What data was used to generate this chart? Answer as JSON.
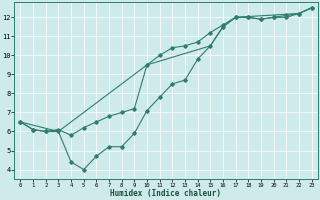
{
  "xlabel": "Humidex (Indice chaleur)",
  "background_color": "#ceeaea",
  "grid_color": "#ffffff",
  "line_color": "#2e7d6e",
  "xlim": [
    -0.5,
    23.5
  ],
  "ylim": [
    3.5,
    12.8
  ],
  "xticks": [
    0,
    1,
    2,
    3,
    4,
    5,
    6,
    7,
    8,
    9,
    10,
    11,
    12,
    13,
    14,
    15,
    16,
    17,
    18,
    19,
    20,
    21,
    22,
    23
  ],
  "yticks": [
    4,
    5,
    6,
    7,
    8,
    9,
    10,
    11,
    12
  ],
  "series1_x": [
    0,
    1,
    2,
    3,
    4,
    5,
    6,
    7,
    8,
    9,
    10,
    11,
    12,
    13,
    14,
    15,
    16,
    17,
    18,
    19,
    20,
    21,
    22,
    23
  ],
  "series1_y": [
    6.5,
    6.1,
    6.0,
    6.0,
    4.4,
    4.0,
    4.7,
    5.2,
    5.2,
    5.9,
    7.1,
    7.8,
    8.5,
    8.7,
    9.8,
    10.5,
    11.5,
    12.0,
    12.0,
    11.9,
    12.0,
    12.1,
    12.2,
    12.5
  ],
  "series2_x": [
    0,
    1,
    2,
    3,
    4,
    5,
    6,
    7,
    8,
    9,
    10,
    11,
    12,
    13,
    14,
    15,
    16,
    17,
    18,
    19,
    20,
    21,
    22,
    23
  ],
  "series2_y": [
    6.5,
    6.1,
    6.0,
    6.1,
    5.8,
    6.2,
    6.5,
    6.8,
    7.0,
    7.2,
    9.5,
    10.0,
    10.4,
    10.5,
    10.7,
    11.2,
    11.6,
    12.0,
    12.0,
    11.9,
    12.0,
    12.0,
    12.2,
    12.5
  ],
  "series3_x": [
    0,
    3,
    10,
    15,
    16,
    17,
    22,
    23
  ],
  "series3_y": [
    6.5,
    6.0,
    9.5,
    10.5,
    11.5,
    12.0,
    12.2,
    12.5
  ]
}
